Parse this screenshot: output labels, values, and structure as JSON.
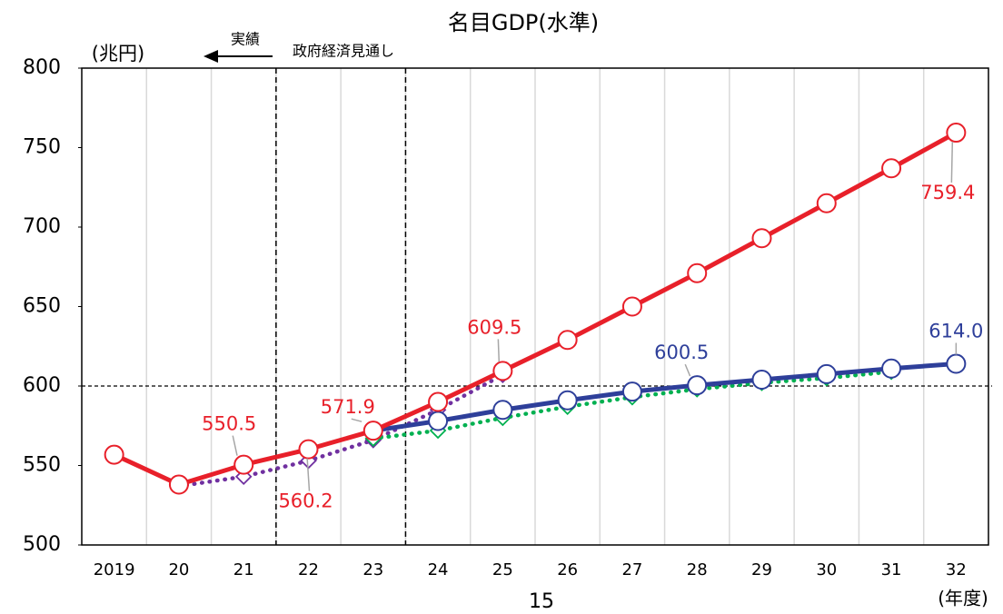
{
  "chart_data": {
    "type": "line",
    "title": "名目GDP(水準)",
    "y_axis_label": "(兆円)",
    "x_axis_label": "(年度)",
    "page_number": "15",
    "annotation_left": "実績",
    "annotation_right": "政府経済見通し",
    "categories": [
      "2019",
      "20",
      "21",
      "22",
      "23",
      "24",
      "25",
      "26",
      "27",
      "28",
      "29",
      "30",
      "31",
      "32"
    ],
    "ylim": [
      500,
      800
    ],
    "yticks": [
      500,
      550,
      600,
      650,
      700,
      750,
      800
    ],
    "reference_line": 600,
    "grid": true,
    "series": [
      {
        "color": "#7030a0",
        "style": "dotted",
        "marker": "diamond",
        "values": [
          null,
          537,
          543,
          553,
          566,
          585,
          607,
          null,
          null,
          null,
          null,
          null,
          null,
          null
        ]
      },
      {
        "color": "#00b050",
        "style": "dotted",
        "marker": "diamond",
        "values": [
          null,
          null,
          null,
          null,
          567,
          572,
          580,
          587,
          593,
          598,
          602,
          605,
          609,
          null
        ]
      },
      {
        "color": "#2e3f9a",
        "style": "solid",
        "marker": "circle",
        "marker_from": 5,
        "values": [
          null,
          null,
          null,
          null,
          571.9,
          578,
          585,
          591,
          596.5,
          600.5,
          604,
          607.5,
          611,
          614.0
        ],
        "value_labels": [
          null,
          null,
          null,
          null,
          null,
          null,
          null,
          null,
          null,
          "600.5",
          null,
          null,
          null,
          "614.0"
        ]
      },
      {
        "color": "#e8202a",
        "style": "solid",
        "marker": "circle",
        "marker_from": 0,
        "values": [
          556.8,
          538,
          550.5,
          560.2,
          571.9,
          590,
          609.5,
          629,
          650,
          671,
          693,
          715,
          737,
          759.4
        ],
        "value_labels": [
          null,
          null,
          "550.5",
          "560.2",
          "571.9",
          null,
          "609.5",
          null,
          null,
          null,
          null,
          null,
          null,
          "759.4"
        ]
      }
    ]
  }
}
